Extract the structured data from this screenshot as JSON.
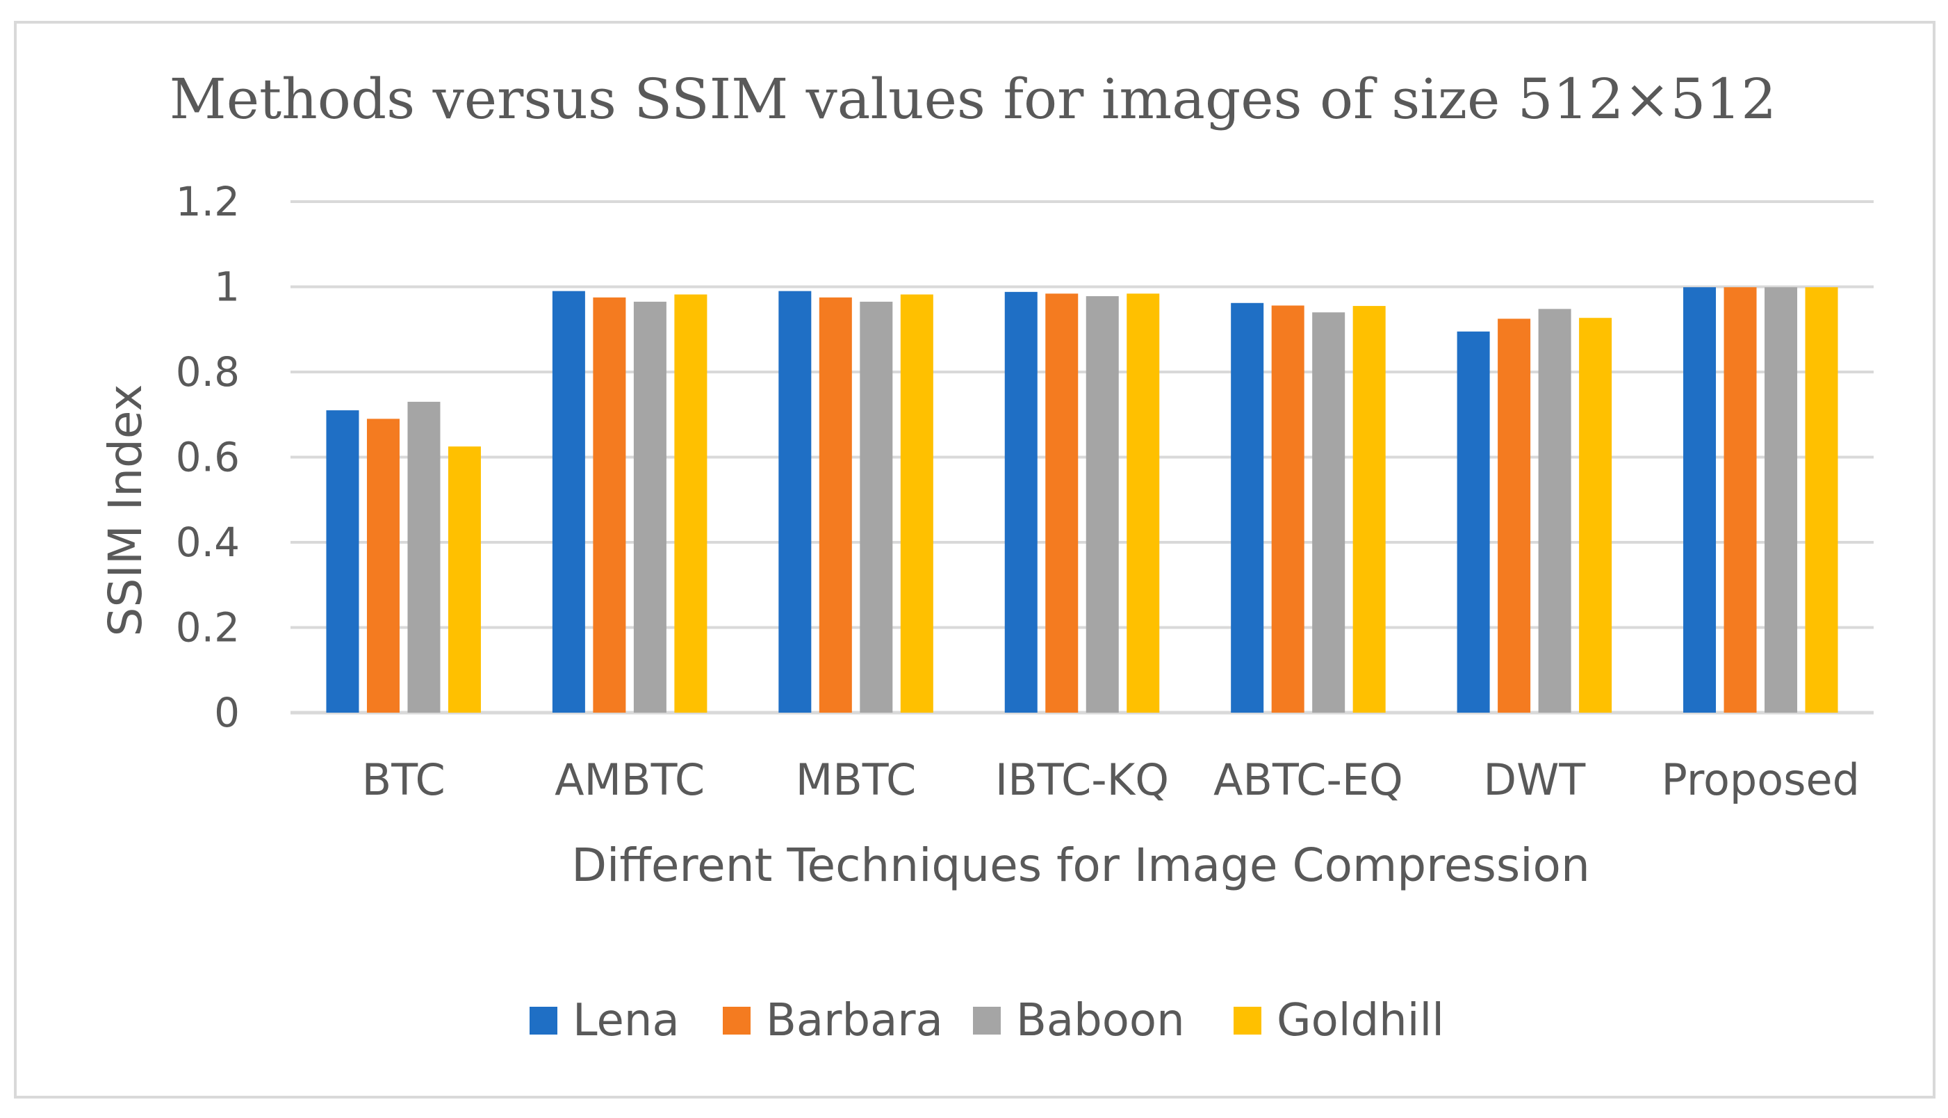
{
  "chart_data": {
    "type": "bar",
    "title": "Methods versus SSIM values for images of size 512×512",
    "xlabel": "Different Techniques for Image Compression",
    "ylabel": "SSIM Index",
    "ylim": [
      0,
      1.2
    ],
    "yticks": [
      0,
      0.2,
      0.4,
      0.6,
      0.8,
      1,
      1.2
    ],
    "ytick_labels": [
      "0",
      "0.2",
      "0.4",
      "0.6",
      "0.8",
      "1",
      "1.2"
    ],
    "grid": true,
    "legend_position": "bottom",
    "categories": [
      "BTC",
      "AMBTC",
      "MBTC",
      "IBTC-KQ",
      "ABTC-EQ",
      "DWT",
      "Proposed"
    ],
    "series": [
      {
        "name": "Lena",
        "color": "#1f6fc5",
        "values": [
          0.71,
          0.99,
          0.99,
          0.988,
          0.962,
          0.895,
          0.999
        ]
      },
      {
        "name": "Barbara",
        "color": "#f47b20",
        "values": [
          0.69,
          0.975,
          0.975,
          0.984,
          0.956,
          0.925,
          0.999
        ]
      },
      {
        "name": "Baboon",
        "color": "#a5a5a5",
        "values": [
          0.73,
          0.965,
          0.965,
          0.978,
          0.94,
          0.948,
          0.999
        ]
      },
      {
        "name": "Goldhill",
        "color": "#ffc000",
        "values": [
          0.625,
          0.982,
          0.982,
          0.984,
          0.955,
          0.927,
          0.999
        ]
      }
    ]
  }
}
